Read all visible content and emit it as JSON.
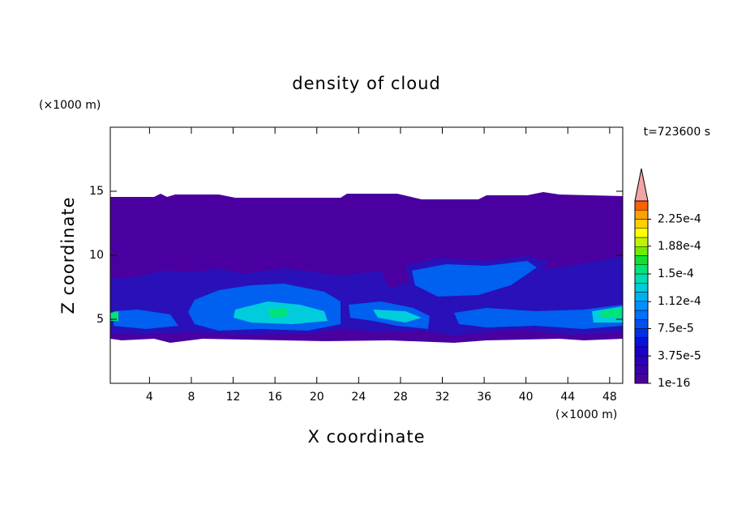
{
  "chart_data": {
    "type": "contour",
    "title": "density of cloud",
    "x_label": "X coordinate",
    "y_label": "Z coordinate",
    "x_unit": "(×1000 m)",
    "y_unit": "(×1000 m)",
    "annotation": "t=723600 s",
    "xlim": [
      0.25,
      49.25
    ],
    "xticks": [
      4,
      8,
      12,
      16,
      20,
      24,
      28,
      32,
      36,
      40,
      44,
      48
    ],
    "ylim": [
      0,
      20
    ],
    "yticks": [
      5,
      10,
      15
    ],
    "clim": [
      0,
      0.00025
    ],
    "cticks": [
      1e-16,
      {
        "value": 3.75e-05,
        "label": "3.75e-5"
      },
      {
        "value": 7.5e-05,
        "label": "7.5e-5"
      },
      {
        "value": 0.000112,
        "label": "1.12e-4"
      },
      {
        "value": 0.00015,
        "label": "1.5e-4"
      },
      {
        "value": 0.000188,
        "label": "1.88e-4"
      },
      {
        "value": 0.000225,
        "label": "2.25e-4"
      }
    ],
    "colors": [
      "#4a00a0",
      "#3a00ae",
      "#2a00bc",
      "#1a00ca",
      "#0a10d8",
      "#0030e6",
      "#0050f2",
      "#0070ff",
      "#0090ff",
      "#00b0f4",
      "#00ccdc",
      "#00deb0",
      "#00e478",
      "#10e030",
      "#70ec00",
      "#c0f400",
      "#ffff00",
      "#ffd000",
      "#ffa000",
      "#ff6000"
    ],
    "extend_color": "#f4a4a4"
  }
}
